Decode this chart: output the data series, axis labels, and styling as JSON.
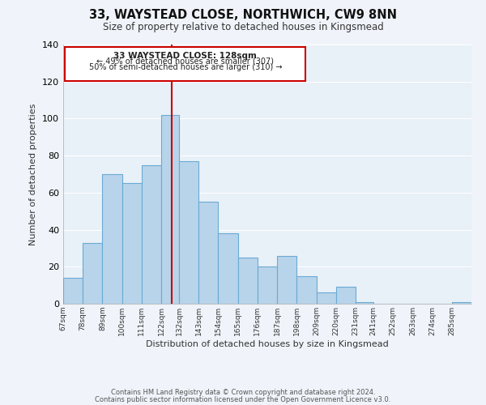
{
  "title": "33, WAYSTEAD CLOSE, NORTHWICH, CW9 8NN",
  "subtitle": "Size of property relative to detached houses in Kingsmead",
  "xlabel": "Distribution of detached houses by size in Kingsmead",
  "ylabel": "Number of detached properties",
  "bin_labels": [
    "67sqm",
    "78sqm",
    "89sqm",
    "100sqm",
    "111sqm",
    "122sqm",
    "132sqm",
    "143sqm",
    "154sqm",
    "165sqm",
    "176sqm",
    "187sqm",
    "198sqm",
    "209sqm",
    "220sqm",
    "231sqm",
    "241sqm",
    "252sqm",
    "263sqm",
    "274sqm",
    "285sqm"
  ],
  "bar_values": [
    14,
    33,
    70,
    65,
    75,
    102,
    77,
    55,
    38,
    25,
    20,
    26,
    15,
    6,
    9,
    1,
    0,
    0,
    0,
    0,
    1
  ],
  "bar_color": "#b8d4ea",
  "bar_edge_color": "#6aaad4",
  "vline_x": 128,
  "vline_color": "#cc0000",
  "ylim": [
    0,
    140
  ],
  "yticks": [
    0,
    20,
    40,
    60,
    80,
    100,
    120,
    140
  ],
  "annotation_title": "33 WAYSTEAD CLOSE: 128sqm",
  "annotation_line1": "← 49% of detached houses are smaller (307)",
  "annotation_line2": "50% of semi-detached houses are larger (310) →",
  "footer1": "Contains HM Land Registry data © Crown copyright and database right 2024.",
  "footer2": "Contains public sector information licensed under the Open Government Licence v3.0.",
  "background_color": "#f0f4fa",
  "plot_bg_color": "#e8f0f8",
  "grid_color": "#ffffff"
}
